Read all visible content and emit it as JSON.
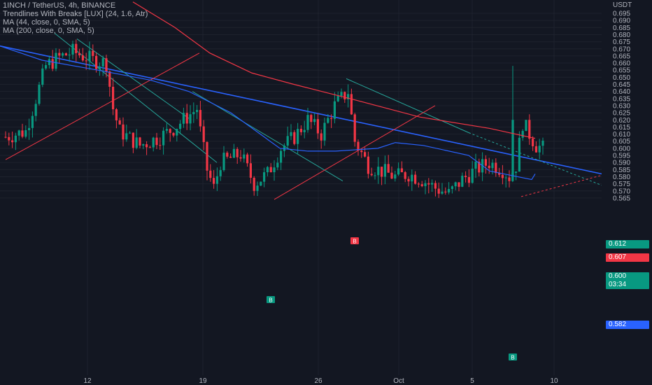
{
  "legend": {
    "symbol": "1INCH / TetherUS, 4h, BINANCE",
    "indicator_1": "Trendlines With Breaks [LUX] (24, 1.6, Atr)",
    "indicator_2": "MA (44, close, 0, SMA, 5)",
    "indicator_3": "MA (200, close, 0, SMA, 5)"
  },
  "price_axis": {
    "currency": "USDT",
    "ticks": [
      "0.695",
      "0.690",
      "0.685",
      "0.680",
      "0.675",
      "0.670",
      "0.665",
      "0.660",
      "0.655",
      "0.650",
      "0.645",
      "0.640",
      "0.635",
      "0.630",
      "0.625",
      "0.620",
      "0.615",
      "0.610",
      "0.605",
      "0.600",
      "0.595",
      "0.590",
      "0.585",
      "0.580",
      "0.575",
      "0.570",
      "0.565"
    ]
  },
  "time_axis": {
    "ticks": [
      "12",
      "19",
      "26",
      "Oct",
      "5",
      "10"
    ]
  },
  "price_tags": {
    "green_1": "0.612",
    "red": "0.607",
    "last_price": "0.600",
    "countdown": "03:34",
    "blue": "0.582"
  },
  "markers": {
    "break_up": "B",
    "break_down": "B"
  },
  "colors": {
    "background": "#131722",
    "up": "#089981",
    "down": "#f23645",
    "ma44": "#2962ff",
    "ma200": "#f23645",
    "trend_blue": "#2962ff",
    "trend_green": "#26a69a",
    "trend_red": "#f23645"
  },
  "chart_data": {
    "type": "candlestick",
    "symbol": "1INCH / TetherUS",
    "interval": "4h",
    "exchange": "BINANCE",
    "ylim": [
      0.563,
      0.7
    ],
    "ohlc_approx": [
      0.61,
      0.612,
      0.595,
      0.6
    ],
    "series": [
      {
        "name": "MA (44, close, 0, SMA, 5)",
        "x": [
          0,
          8,
          16,
          30,
          45,
          55,
          70,
          84,
          92,
          100,
          112,
          118,
          126,
          140,
          150,
          160,
          170,
          178
        ],
        "y": [
          0.672,
          0.667,
          0.662,
          0.655,
          0.648,
          0.64,
          0.625,
          0.6,
          0.598,
          0.598,
          0.6,
          0.604,
          0.602,
          0.595,
          0.584,
          0.58,
          0.578,
          0.582
        ]
      },
      {
        "name": "MA (200, close, 0, SMA, 5)",
        "x": [
          40,
          55,
          70,
          90,
          105,
          120,
          140,
          160,
          178
        ],
        "y": [
          0.703,
          0.685,
          0.667,
          0.653,
          0.645,
          0.635,
          0.622,
          0.614,
          0.607
        ]
      }
    ]
  }
}
